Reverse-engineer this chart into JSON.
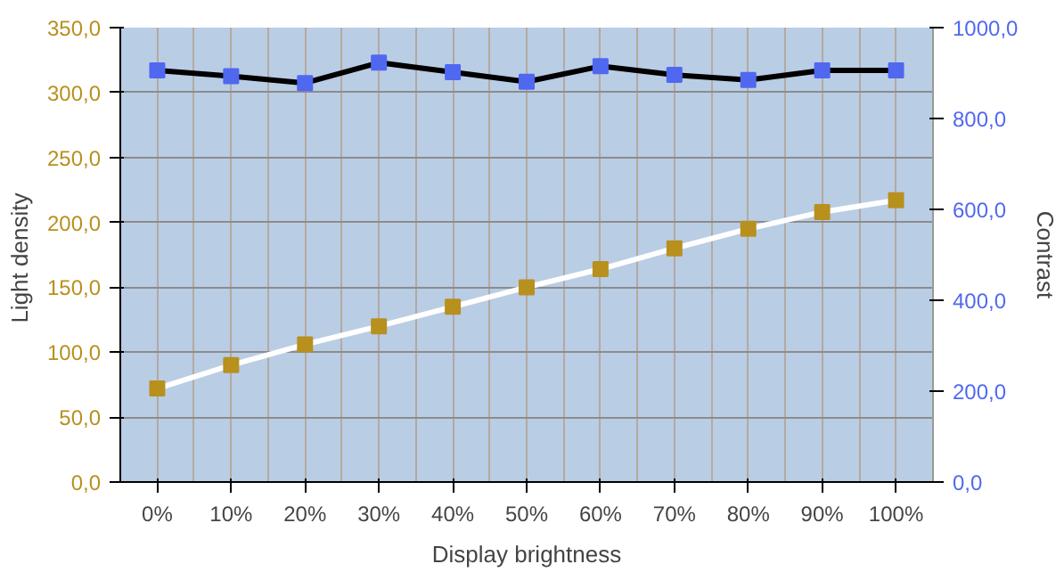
{
  "chart_data": {
    "type": "line",
    "xlabel": "Display brightness",
    "ylabel": "Light  density",
    "y2label": "Contrast",
    "categories": [
      "0%",
      "10%",
      "20%",
      "30%",
      "40%",
      "50%",
      "60%",
      "70%",
      "80%",
      "90%",
      "100%"
    ],
    "series": [
      {
        "color": "#5068f0",
        "axis": "y2",
        "values": [
          906,
          893,
          878,
          923,
          902,
          881,
          915,
          896,
          885,
          906,
          906
        ]
      },
      {
        "color": "#b8901e",
        "values": [
          72,
          90,
          106,
          120,
          135,
          150,
          164,
          180,
          195,
          208,
          217
        ]
      }
    ],
    "ylim": [
      0,
      350
    ],
    "yticks": [
      {
        "value": 0,
        "label": "0,0"
      },
      {
        "value": 50,
        "label": "50,0"
      },
      {
        "value": 100,
        "label": "100,0"
      },
      {
        "value": 150,
        "label": "150,0"
      },
      {
        "value": 200,
        "label": "200,0"
      },
      {
        "value": 250,
        "label": "250,0"
      },
      {
        "value": 300,
        "label": "300,0"
      },
      {
        "value": 350,
        "label": "350,0"
      }
    ],
    "y2lim": [
      0,
      1000
    ],
    "y2ticks": [
      {
        "value": 0,
        "label": "0,0"
      },
      {
        "value": 200,
        "label": "200,0"
      },
      {
        "value": 400,
        "label": "400,0"
      },
      {
        "value": 600,
        "label": "600,0"
      },
      {
        "value": 800,
        "label": "800,0"
      },
      {
        "value": 1000,
        "label": "1000,0"
      }
    ],
    "grid": true,
    "marker": "square",
    "line_style": "solid"
  }
}
